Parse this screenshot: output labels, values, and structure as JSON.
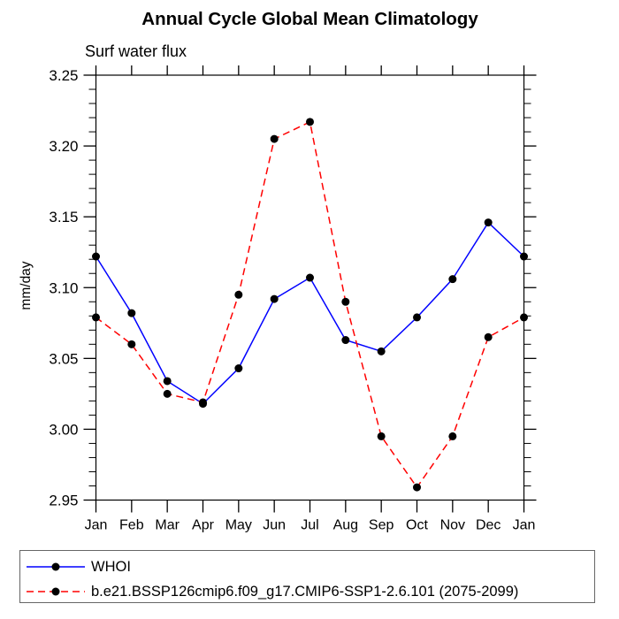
{
  "page": {
    "background": "#ffffff"
  },
  "chart_data": {
    "type": "line",
    "title": "Annual Cycle Global Mean Climatology",
    "subtitle": "Surf water flux",
    "ylabel": "mm/day",
    "xlabel": "",
    "categories": [
      "Jan",
      "Feb",
      "Mar",
      "Apr",
      "May",
      "Jun",
      "Jul",
      "Aug",
      "Sep",
      "Oct",
      "Nov",
      "Dec",
      "Jan"
    ],
    "ylim": [
      2.95,
      3.25
    ],
    "ytick_step": 0.05,
    "yminor_step": 0.01,
    "ytick_labels": [
      "2.95",
      "3.00",
      "3.05",
      "3.10",
      "3.15",
      "3.20",
      "3.25"
    ],
    "grid": false,
    "legend_position": "bottom",
    "axis_color": "#000000",
    "series": [
      {
        "name": "WHOI",
        "color": "#0000ff",
        "style": "solid",
        "marker": "circle",
        "marker_color": "#000000",
        "values": [
          3.122,
          3.082,
          3.034,
          3.018,
          3.043,
          3.092,
          3.107,
          3.063,
          3.055,
          3.079,
          3.106,
          3.146,
          3.122
        ]
      },
      {
        "name": "b.e21.BSSP126cmip6.f09_g17.CMIP6-SSP1-2.6.101 (2075-2099)",
        "color": "#ff0000",
        "style": "dashed",
        "marker": "circle",
        "marker_color": "#000000",
        "values": [
          3.079,
          3.06,
          3.025,
          3.019,
          3.095,
          3.205,
          3.217,
          3.09,
          2.995,
          2.959,
          2.995,
          3.065,
          3.079
        ]
      }
    ]
  }
}
